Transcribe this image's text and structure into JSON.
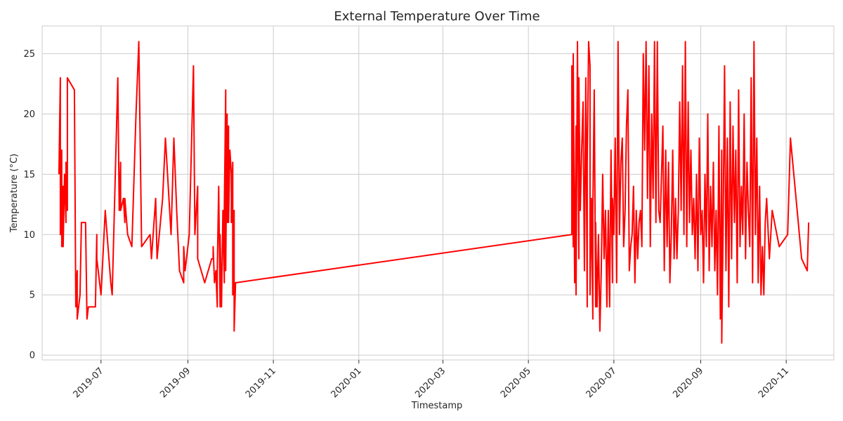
{
  "chart_data": {
    "type": "line",
    "title": "External Temperature Over Time",
    "xlabel": "Timestamp",
    "ylabel": "Temperature (°C)",
    "xlim": [
      "2019-05-20",
      "2020-12-05"
    ],
    "ylim": [
      -0.4,
      27.3
    ],
    "yticks": [
      0,
      5,
      10,
      15,
      20,
      25
    ],
    "xticks": [
      {
        "date": "2019-07-01",
        "label": "2019-07"
      },
      {
        "date": "2019-09-01",
        "label": "2019-09"
      },
      {
        "date": "2019-11-01",
        "label": "2019-11"
      },
      {
        "date": "2020-01-01",
        "label": "2020-01"
      },
      {
        "date": "2020-03-01",
        "label": "2020-03"
      },
      {
        "date": "2020-05-01",
        "label": "2020-05"
      },
      {
        "date": "2020-07-01",
        "label": "2020-07"
      },
      {
        "date": "2020-09-01",
        "label": "2020-09"
      },
      {
        "date": "2020-11-01",
        "label": "2020-11"
      }
    ],
    "grid": true,
    "series": [
      {
        "color": "#ff0000",
        "points": [
          [
            "2019-06-01",
            15
          ],
          [
            "2019-06-02",
            23
          ],
          [
            "2019-06-02",
            10
          ],
          [
            "2019-06-03",
            17
          ],
          [
            "2019-06-03",
            9
          ],
          [
            "2019-06-04",
            14
          ],
          [
            "2019-06-04",
            9
          ],
          [
            "2019-06-05",
            15
          ],
          [
            "2019-06-06",
            11
          ],
          [
            "2019-06-06",
            16
          ],
          [
            "2019-06-07",
            12
          ],
          [
            "2019-06-07",
            23
          ],
          [
            "2019-06-12",
            22
          ],
          [
            "2019-06-13",
            4
          ],
          [
            "2019-06-13",
            5
          ],
          [
            "2019-06-14",
            7
          ],
          [
            "2019-06-14",
            3
          ],
          [
            "2019-06-16",
            5
          ],
          [
            "2019-06-17",
            11
          ],
          [
            "2019-06-20",
            11
          ],
          [
            "2019-06-21",
            3
          ],
          [
            "2019-06-22",
            4
          ],
          [
            "2019-06-27",
            4
          ],
          [
            "2019-06-28",
            10
          ],
          [
            "2019-06-28",
            8
          ],
          [
            "2019-07-01",
            5
          ],
          [
            "2019-07-04",
            12
          ],
          [
            "2019-07-08",
            6
          ],
          [
            "2019-07-09",
            5
          ],
          [
            "2019-07-13",
            23
          ],
          [
            "2019-07-14",
            12
          ],
          [
            "2019-07-15",
            16
          ],
          [
            "2019-07-15",
            12
          ],
          [
            "2019-07-17",
            13
          ],
          [
            "2019-07-18",
            11
          ],
          [
            "2019-07-18",
            13
          ],
          [
            "2019-07-20",
            10
          ],
          [
            "2019-07-23",
            9
          ],
          [
            "2019-07-26",
            20
          ],
          [
            "2019-07-28",
            26
          ],
          [
            "2019-07-30",
            9
          ],
          [
            "2019-08-05",
            10
          ],
          [
            "2019-08-06",
            8
          ],
          [
            "2019-08-09",
            13
          ],
          [
            "2019-08-10",
            8
          ],
          [
            "2019-08-14",
            13
          ],
          [
            "2019-08-16",
            18
          ],
          [
            "2019-08-19",
            12
          ],
          [
            "2019-08-20",
            10
          ],
          [
            "2019-08-22",
            18
          ],
          [
            "2019-08-24",
            12
          ],
          [
            "2019-08-26",
            7
          ],
          [
            "2019-08-29",
            6
          ],
          [
            "2019-08-29",
            9
          ],
          [
            "2019-08-30",
            7
          ],
          [
            "2019-09-02",
            10
          ],
          [
            "2019-09-05",
            24
          ],
          [
            "2019-09-06",
            10
          ],
          [
            "2019-09-08",
            14
          ],
          [
            "2019-09-08",
            8
          ],
          [
            "2019-09-13",
            6
          ],
          [
            "2019-09-18",
            8
          ],
          [
            "2019-09-19",
            8
          ],
          [
            "2019-09-19",
            9
          ],
          [
            "2019-09-20",
            6
          ],
          [
            "2019-09-21",
            7
          ],
          [
            "2019-09-22",
            4
          ],
          [
            "2019-09-22",
            7
          ],
          [
            "2019-09-23",
            14
          ],
          [
            "2019-09-24",
            4
          ],
          [
            "2019-09-24",
            10
          ],
          [
            "2019-09-25",
            4
          ],
          [
            "2019-09-26",
            12
          ],
          [
            "2019-09-27",
            6
          ],
          [
            "2019-09-27",
            12
          ],
          [
            "2019-09-28",
            22
          ],
          [
            "2019-09-28",
            7
          ],
          [
            "2019-09-29",
            20
          ],
          [
            "2019-09-29",
            11
          ],
          [
            "2019-09-30",
            19
          ],
          [
            "2019-09-30",
            11
          ],
          [
            "2019-10-01",
            17
          ],
          [
            "2019-10-02",
            15
          ],
          [
            "2019-10-02",
            11
          ],
          [
            "2019-10-03",
            16
          ],
          [
            "2019-10-03",
            5
          ],
          [
            "2019-10-04",
            12
          ],
          [
            "2019-10-04",
            2
          ],
          [
            "2019-10-05",
            6
          ],
          [
            "2020-06-01",
            10
          ],
          [
            "2020-06-01",
            24
          ],
          [
            "2020-06-02",
            9
          ],
          [
            "2020-06-02",
            25
          ],
          [
            "2020-06-03",
            6
          ],
          [
            "2020-06-04",
            19
          ],
          [
            "2020-06-04",
            5
          ],
          [
            "2020-06-05",
            26
          ],
          [
            "2020-06-06",
            8
          ],
          [
            "2020-06-06",
            23
          ],
          [
            "2020-06-07",
            12
          ],
          [
            "2020-06-08",
            17
          ],
          [
            "2020-06-09",
            21
          ],
          [
            "2020-06-10",
            7
          ],
          [
            "2020-06-11",
            23
          ],
          [
            "2020-06-12",
            4
          ],
          [
            "2020-06-12",
            16
          ],
          [
            "2020-06-13",
            26
          ],
          [
            "2020-06-14",
            24
          ],
          [
            "2020-06-14",
            5
          ],
          [
            "2020-06-15",
            13
          ],
          [
            "2020-06-16",
            3
          ],
          [
            "2020-06-16",
            12
          ],
          [
            "2020-06-17",
            22
          ],
          [
            "2020-06-18",
            4
          ],
          [
            "2020-06-18",
            11
          ],
          [
            "2020-06-19",
            4
          ],
          [
            "2020-06-20",
            10
          ],
          [
            "2020-06-21",
            2
          ],
          [
            "2020-06-22",
            7
          ],
          [
            "2020-06-23",
            15
          ],
          [
            "2020-06-24",
            8
          ],
          [
            "2020-06-25",
            12
          ],
          [
            "2020-06-26",
            4
          ],
          [
            "2020-06-27",
            12
          ],
          [
            "2020-06-28",
            4
          ],
          [
            "2020-06-29",
            17
          ],
          [
            "2020-06-30",
            6
          ],
          [
            "2020-06-30",
            13
          ],
          [
            "2020-07-01",
            10
          ],
          [
            "2020-07-02",
            18
          ],
          [
            "2020-07-03",
            6
          ],
          [
            "2020-07-04",
            26
          ],
          [
            "2020-07-05",
            10
          ],
          [
            "2020-07-06",
            16
          ],
          [
            "2020-07-07",
            18
          ],
          [
            "2020-07-08",
            9
          ],
          [
            "2020-07-09",
            12
          ],
          [
            "2020-07-10",
            19
          ],
          [
            "2020-07-11",
            22
          ],
          [
            "2020-07-12",
            7
          ],
          [
            "2020-07-13",
            9
          ],
          [
            "2020-07-14",
            10
          ],
          [
            "2020-07-15",
            14
          ],
          [
            "2020-07-16",
            6
          ],
          [
            "2020-07-17",
            12
          ],
          [
            "2020-07-18",
            8
          ],
          [
            "2020-07-19",
            11
          ],
          [
            "2020-07-20",
            12
          ],
          [
            "2020-07-21",
            9
          ],
          [
            "2020-07-22",
            25
          ],
          [
            "2020-07-23",
            17
          ],
          [
            "2020-07-24",
            26
          ],
          [
            "2020-07-25",
            13
          ],
          [
            "2020-07-26",
            24
          ],
          [
            "2020-07-27",
            9
          ],
          [
            "2020-07-28",
            20
          ],
          [
            "2020-07-29",
            13
          ],
          [
            "2020-07-30",
            26
          ],
          [
            "2020-07-31",
            11
          ],
          [
            "2020-08-01",
            26
          ],
          [
            "2020-08-02",
            12
          ],
          [
            "2020-08-03",
            11
          ],
          [
            "2020-08-04",
            15
          ],
          [
            "2020-08-05",
            19
          ],
          [
            "2020-08-06",
            7
          ],
          [
            "2020-08-07",
            17
          ],
          [
            "2020-08-08",
            9
          ],
          [
            "2020-08-09",
            16
          ],
          [
            "2020-08-10",
            6
          ],
          [
            "2020-08-11",
            10
          ],
          [
            "2020-08-12",
            17
          ],
          [
            "2020-08-13",
            8
          ],
          [
            "2020-08-14",
            13
          ],
          [
            "2020-08-15",
            8
          ],
          [
            "2020-08-16",
            12
          ],
          [
            "2020-08-17",
            21
          ],
          [
            "2020-08-18",
            12
          ],
          [
            "2020-08-19",
            24
          ],
          [
            "2020-08-20",
            10
          ],
          [
            "2020-08-21",
            26
          ],
          [
            "2020-08-22",
            9
          ],
          [
            "2020-08-23",
            21
          ],
          [
            "2020-08-24",
            11
          ],
          [
            "2020-08-25",
            17
          ],
          [
            "2020-08-26",
            10
          ],
          [
            "2020-08-27",
            13
          ],
          [
            "2020-08-28",
            8
          ],
          [
            "2020-08-29",
            15
          ],
          [
            "2020-08-30",
            7
          ],
          [
            "2020-08-31",
            18
          ],
          [
            "2020-09-01",
            10
          ],
          [
            "2020-09-02",
            12
          ],
          [
            "2020-09-03",
            6
          ],
          [
            "2020-09-04",
            15
          ],
          [
            "2020-09-05",
            9
          ],
          [
            "2020-09-06",
            20
          ],
          [
            "2020-09-07",
            7
          ],
          [
            "2020-09-08",
            14
          ],
          [
            "2020-09-09",
            9
          ],
          [
            "2020-09-10",
            16
          ],
          [
            "2020-09-11",
            7
          ],
          [
            "2020-09-12",
            12
          ],
          [
            "2020-09-13",
            5
          ],
          [
            "2020-09-14",
            19
          ],
          [
            "2020-09-15",
            3
          ],
          [
            "2020-09-16",
            17
          ],
          [
            "2020-09-16",
            1
          ],
          [
            "2020-09-17",
            11
          ],
          [
            "2020-09-18",
            24
          ],
          [
            "2020-09-19",
            7
          ],
          [
            "2020-09-20",
            18
          ],
          [
            "2020-09-21",
            4
          ],
          [
            "2020-09-22",
            21
          ],
          [
            "2020-09-23",
            8
          ],
          [
            "2020-09-24",
            19
          ],
          [
            "2020-09-25",
            11
          ],
          [
            "2020-09-26",
            17
          ],
          [
            "2020-09-27",
            6
          ],
          [
            "2020-09-28",
            22
          ],
          [
            "2020-09-29",
            9
          ],
          [
            "2020-09-30",
            14
          ],
          [
            "2020-10-01",
            10
          ],
          [
            "2020-10-02",
            20
          ],
          [
            "2020-10-03",
            8
          ],
          [
            "2020-10-04",
            16
          ],
          [
            "2020-10-05",
            12
          ],
          [
            "2020-10-06",
            9
          ],
          [
            "2020-10-07",
            23
          ],
          [
            "2020-10-08",
            6
          ],
          [
            "2020-10-09",
            26
          ],
          [
            "2020-10-10",
            10
          ],
          [
            "2020-10-11",
            18
          ],
          [
            "2020-10-12",
            6
          ],
          [
            "2020-10-13",
            14
          ],
          [
            "2020-10-14",
            5
          ],
          [
            "2020-10-15",
            9
          ],
          [
            "2020-10-16",
            5
          ],
          [
            "2020-10-17",
            11
          ],
          [
            "2020-10-18",
            13
          ],
          [
            "2020-10-20",
            8
          ],
          [
            "2020-10-22",
            12
          ],
          [
            "2020-10-27",
            9
          ],
          [
            "2020-11-02",
            10
          ],
          [
            "2020-11-04",
            18
          ],
          [
            "2020-11-12",
            8
          ],
          [
            "2020-11-16",
            7
          ],
          [
            "2020-11-17",
            11
          ]
        ]
      }
    ]
  }
}
